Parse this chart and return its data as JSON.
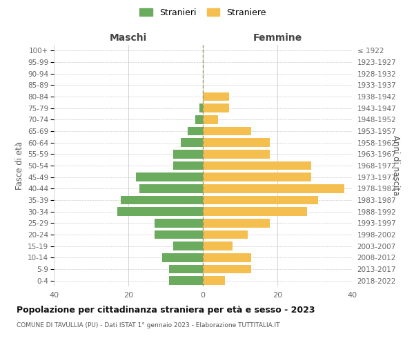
{
  "age_groups": [
    "0-4",
    "5-9",
    "10-14",
    "15-19",
    "20-24",
    "25-29",
    "30-34",
    "35-39",
    "40-44",
    "45-49",
    "50-54",
    "55-59",
    "60-64",
    "65-69",
    "70-74",
    "75-79",
    "80-84",
    "85-89",
    "90-94",
    "95-99",
    "100+"
  ],
  "birth_years": [
    "2018-2022",
    "2013-2017",
    "2008-2012",
    "2003-2007",
    "1998-2002",
    "1993-1997",
    "1988-1992",
    "1983-1987",
    "1978-1982",
    "1973-1977",
    "1968-1972",
    "1963-1967",
    "1958-1962",
    "1953-1957",
    "1948-1952",
    "1943-1947",
    "1938-1942",
    "1933-1937",
    "1928-1932",
    "1923-1927",
    "≤ 1922"
  ],
  "maschi": [
    9,
    9,
    11,
    8,
    13,
    13,
    23,
    22,
    17,
    18,
    8,
    8,
    6,
    4,
    2,
    1,
    0,
    0,
    0,
    0,
    0
  ],
  "femmine": [
    6,
    13,
    13,
    8,
    12,
    18,
    28,
    31,
    38,
    29,
    29,
    18,
    18,
    13,
    4,
    7,
    7,
    0,
    0,
    0,
    0
  ],
  "color_maschi": "#6aab5e",
  "color_femmine": "#f5bf4f",
  "title": "Popolazione per cittadinanza straniera per età e sesso - 2023",
  "subtitle": "COMUNE DI TAVULLIA (PU) - Dati ISTAT 1° gennaio 2023 - Elaborazione TUTTITALIA.IT",
  "xlabel_left": "Maschi",
  "xlabel_right": "Femmine",
  "ylabel_left": "Fasce di età",
  "ylabel_right": "Anni di nascita",
  "xlim": 40,
  "legend_maschi": "Stranieri",
  "legend_femmine": "Straniere",
  "bg_color": "#ffffff",
  "grid_color": "#cccccc",
  "bar_height": 0.75,
  "label_color": "#666666",
  "center_line_color": "#aaaaaa"
}
